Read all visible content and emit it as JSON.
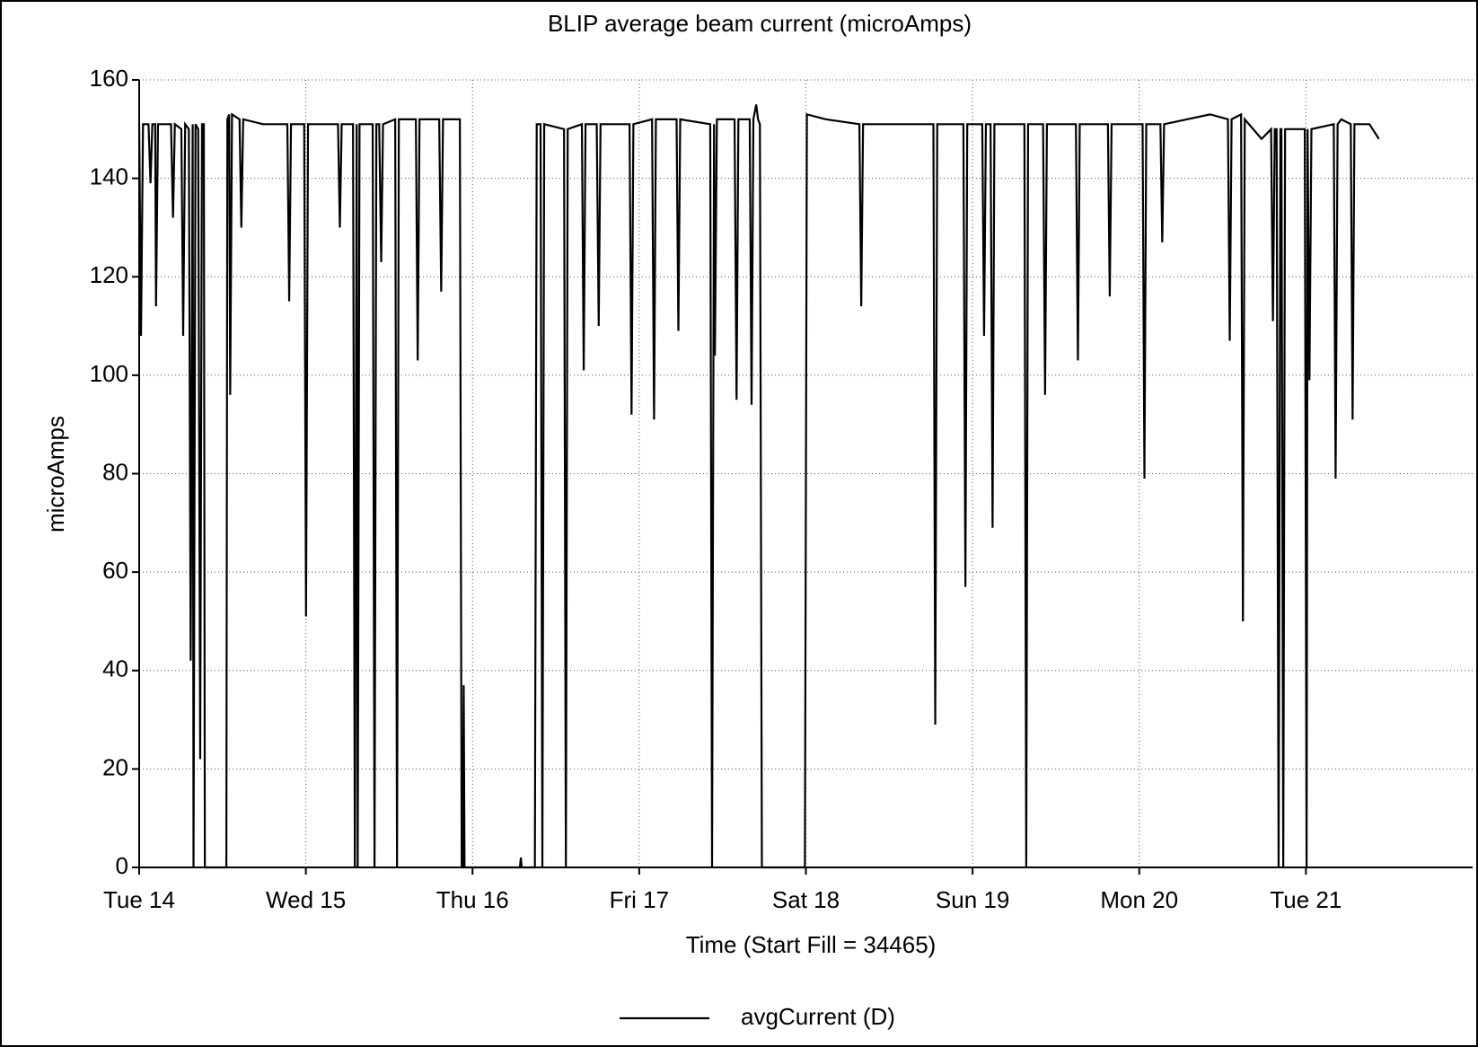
{
  "chart_data": {
    "type": "line",
    "title": "BLIP average beam current (microAmps)",
    "xlabel": "Time (Start Fill = 34465)",
    "ylabel": "microAmps",
    "xlim": [
      14,
      22
    ],
    "xticks": [
      {
        "value": 14,
        "label": "Tue 14"
      },
      {
        "value": 15,
        "label": "Wed 15"
      },
      {
        "value": 16,
        "label": "Thu 16"
      },
      {
        "value": 17,
        "label": "Fri 17"
      },
      {
        "value": 18,
        "label": "Sat 18"
      },
      {
        "value": 19,
        "label": "Sun 19"
      },
      {
        "value": 20,
        "label": "Mon 20"
      },
      {
        "value": 21,
        "label": "Tue 21"
      }
    ],
    "ylim": [
      0,
      160
    ],
    "yticks": [
      0,
      20,
      40,
      60,
      80,
      100,
      120,
      140,
      160
    ],
    "grid": true,
    "legend": "bottom",
    "series": [
      {
        "name": "avgCurrent (D)",
        "color": "#000000",
        "x": [
          14.0,
          14.011,
          14.023,
          14.056,
          14.068,
          14.079,
          14.096,
          14.101,
          14.113,
          14.191,
          14.203,
          14.214,
          14.253,
          14.264,
          14.276,
          14.298,
          14.309,
          14.321,
          14.326,
          14.338,
          14.354,
          14.366,
          14.377,
          14.388,
          14.394,
          14.523,
          14.529,
          14.54,
          14.546,
          14.557,
          14.602,
          14.613,
          14.624,
          14.743,
          14.889,
          14.9,
          14.911,
          14.99,
          15.001,
          15.013,
          15.108,
          15.193,
          15.204,
          15.215,
          15.283,
          15.294,
          15.305,
          15.311,
          15.322,
          15.401,
          15.412,
          15.423,
          15.44,
          15.452,
          15.463,
          15.536,
          15.547,
          15.558,
          15.66,
          15.671,
          15.682,
          15.8,
          15.812,
          15.823,
          15.924,
          15.935,
          15.941,
          15.947,
          15.952,
          16.284,
          16.29,
          16.295,
          16.374,
          16.385,
          16.408,
          16.419,
          16.43,
          16.549,
          16.56,
          16.571,
          16.656,
          16.667,
          16.678,
          16.745,
          16.757,
          16.768,
          16.942,
          16.954,
          16.965,
          17.077,
          17.089,
          17.1,
          17.224,
          17.235,
          17.246,
          17.426,
          17.437,
          17.449,
          17.454,
          17.466,
          17.572,
          17.584,
          17.595,
          17.663,
          17.674,
          17.685,
          17.702,
          17.713,
          17.724,
          17.736,
          17.994,
          18.006,
          18.118,
          18.321,
          18.332,
          18.343,
          18.568,
          18.765,
          18.776,
          18.788,
          18.945,
          18.957,
          18.968,
          19.058,
          19.069,
          19.08,
          19.108,
          19.12,
          19.131,
          19.311,
          19.322,
          19.333,
          19.423,
          19.435,
          19.446,
          19.62,
          19.632,
          19.643,
          19.812,
          19.823,
          19.834,
          20.02,
          20.031,
          20.042,
          20.127,
          20.138,
          20.149,
          20.425,
          20.532,
          20.543,
          20.554,
          20.611,
          20.622,
          20.633,
          20.734,
          20.791,
          20.802,
          20.813,
          20.824,
          20.836,
          20.847,
          20.853,
          20.864,
          20.875,
          20.993,
          21.004,
          21.01,
          21.021,
          21.033,
          21.167,
          21.178,
          21.19,
          21.212,
          21.269,
          21.28,
          21.291,
          21.381,
          21.438
        ],
        "values": [
          151,
          108,
          151,
          151,
          139,
          151,
          151,
          114,
          151,
          151,
          132,
          151,
          150,
          108,
          151,
          150,
          42,
          151,
          0,
          151,
          150,
          22,
          151,
          151,
          0,
          0,
          152,
          153,
          96,
          153,
          152,
          130,
          152,
          151,
          151,
          115,
          151,
          151,
          51,
          151,
          151,
          151,
          130,
          151,
          151,
          0,
          151,
          0,
          151,
          151,
          0,
          151,
          151,
          123,
          151,
          152,
          0,
          152,
          152,
          103,
          152,
          152,
          117,
          152,
          152,
          0,
          0,
          37,
          0,
          0,
          2,
          0,
          0,
          151,
          151,
          0,
          151,
          150,
          0,
          150,
          151,
          101,
          151,
          151,
          110,
          151,
          151,
          92,
          151,
          152,
          91,
          152,
          152,
          109,
          152,
          151,
          0,
          151,
          104,
          152,
          152,
          95,
          152,
          152,
          94,
          152,
          155,
          152,
          151,
          0,
          0,
          153,
          152,
          151,
          114,
          151,
          151,
          151,
          29,
          151,
          151,
          57,
          151,
          151,
          108,
          151,
          151,
          69,
          151,
          151,
          0,
          151,
          151,
          96,
          151,
          151,
          103,
          151,
          151,
          116,
          151,
          151,
          79,
          151,
          151,
          127,
          151,
          153,
          152,
          107,
          152,
          153,
          50,
          152,
          148,
          150,
          111,
          150,
          150,
          0,
          150,
          150,
          0,
          150,
          150,
          0,
          150,
          99,
          150,
          151,
          79,
          151,
          152,
          151,
          91,
          151,
          151,
          148
        ]
      }
    ]
  }
}
